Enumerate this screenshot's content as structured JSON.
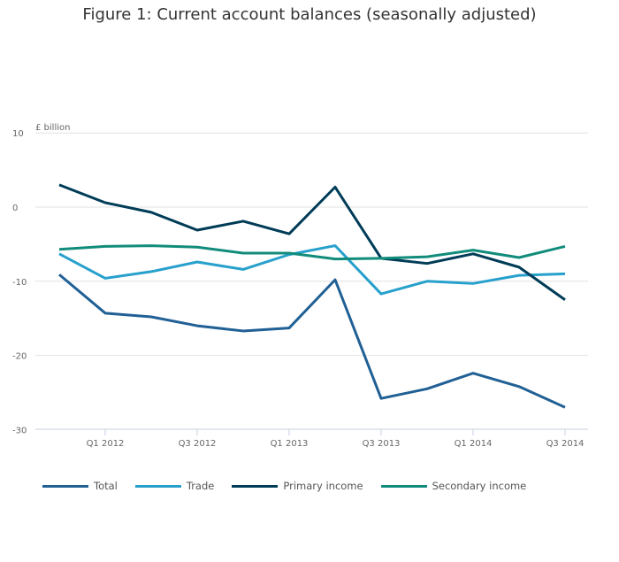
{
  "chart_data": {
    "type": "line",
    "title": "Figure 1: Current account balances (seasonally adjusted)",
    "ylabel": "£ billion",
    "ylim": [
      -30,
      10
    ],
    "yticks": [
      10,
      0,
      -10,
      -20,
      -30
    ],
    "categories": [
      "",
      "Q1 2012",
      "",
      "Q3 2012",
      "",
      "Q1 2013",
      "",
      "Q3 2013",
      "",
      "Q1 2014",
      "",
      "Q3 2014"
    ],
    "grid": true,
    "legend": "bottom",
    "series": [
      {
        "name": "Total",
        "color": "#206095",
        "values": [
          -9.1,
          -14.3,
          -14.8,
          -16.0,
          -16.7,
          -16.3,
          -9.8,
          -25.8,
          -24.5,
          -22.4,
          -24.2,
          -27.0
        ]
      },
      {
        "name": "Trade",
        "color": "#27a0cc",
        "values": [
          -6.3,
          -9.6,
          -8.7,
          -7.4,
          -8.4,
          -6.4,
          -5.2,
          -11.7,
          -10.0,
          -10.3,
          -9.2,
          -9.0
        ]
      },
      {
        "name": "Primary income",
        "color": "#003c57",
        "values": [
          3.0,
          0.6,
          -0.7,
          -3.1,
          -1.9,
          -3.6,
          2.7,
          -6.9,
          -7.6,
          -6.3,
          -8.1,
          -12.5
        ]
      },
      {
        "name": "Secondary income",
        "color": "#118c7b",
        "values": [
          -5.7,
          -5.3,
          -5.2,
          -5.4,
          -6.2,
          -6.2,
          -7.0,
          -6.9,
          -6.7,
          -5.8,
          -6.8,
          -5.3
        ]
      }
    ]
  }
}
